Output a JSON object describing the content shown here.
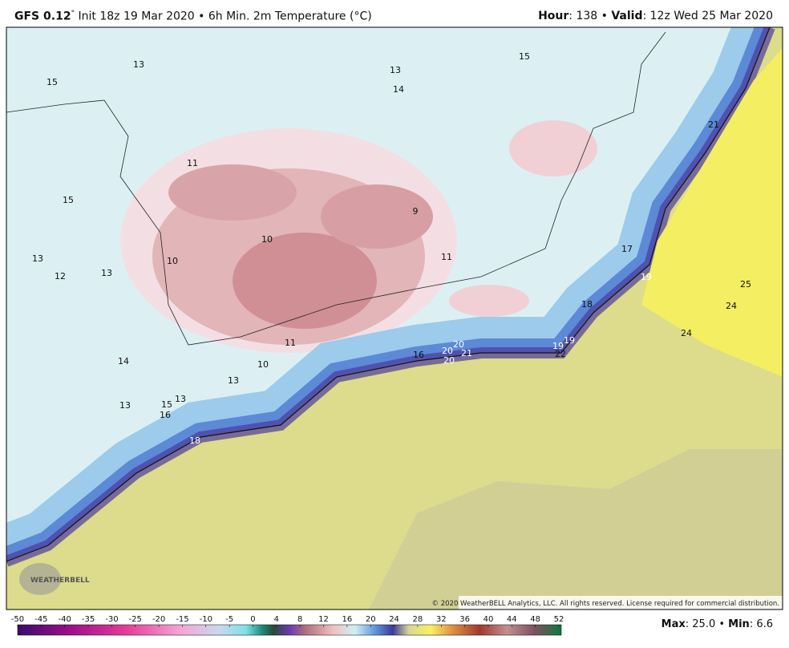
{
  "header": {
    "model": "GFS 0.12",
    "degree": "°",
    "run": "Init 18z 19 Mar 2020 • 6h Min. 2m Temperature (°C)",
    "hour_key": "Hour",
    "hour_text": ": 138 • ",
    "valid_key": "Valid",
    "valid_text": ": 12z Wed 25 Mar 2020"
  },
  "map_labels": [
    13,
    15,
    13,
    14,
    15,
    11,
    15,
    9,
    10,
    11,
    13,
    10,
    12,
    13,
    17,
    19,
    25,
    24,
    18,
    24,
    11,
    10,
    14,
    16,
    20,
    20,
    20,
    21,
    19,
    19,
    22,
    13,
    13,
    15,
    13,
    16,
    18,
    21
  ],
  "logo": "WEATHERBELL",
  "copyright": "© 2020 WeatherBELL Analytics, LLC. All rights reserved. License required for commercial distribution.",
  "colorbar": {
    "ticks": [
      -50,
      -45,
      -40,
      -35,
      -30,
      -25,
      -20,
      -15,
      -10,
      -5,
      0,
      4,
      8,
      12,
      16,
      20,
      24,
      28,
      32,
      36,
      40,
      44,
      48,
      52
    ]
  },
  "footer": {
    "max_key": "Max",
    "max_text": ": 25.0 • ",
    "min_key": "Min",
    "min_text": ": 6.6"
  }
}
